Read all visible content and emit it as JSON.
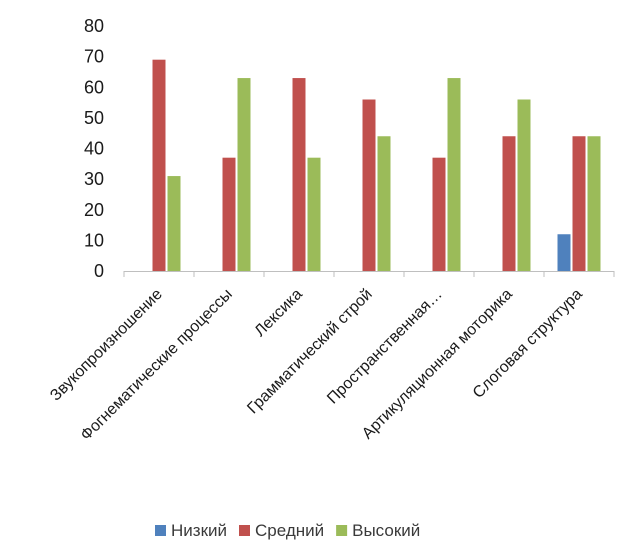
{
  "chart_data": {
    "type": "bar",
    "categories": [
      "Звукопроизношение",
      "Фогнематические процессы",
      "Лексика",
      "Грамматический строй",
      "Пространственная…",
      "Артикуляционная моторика",
      "Слоговая структура"
    ],
    "series": [
      {
        "name": "Низкий",
        "color": "#4f81bd",
        "values": [
          0,
          0,
          0,
          0,
          0,
          0,
          12
        ]
      },
      {
        "name": "Средний",
        "color": "#c0504d",
        "values": [
          69,
          37,
          63,
          56,
          37,
          44,
          44
        ]
      },
      {
        "name": "Высокий",
        "color": "#9bbb59",
        "values": [
          31,
          63,
          37,
          44,
          63,
          56,
          44
        ]
      }
    ],
    "ylim": [
      0,
      80
    ],
    "yticks": [
      0,
      10,
      20,
      30,
      40,
      50,
      60,
      70,
      80
    ],
    "grid": false,
    "legend_position": "bottom"
  }
}
